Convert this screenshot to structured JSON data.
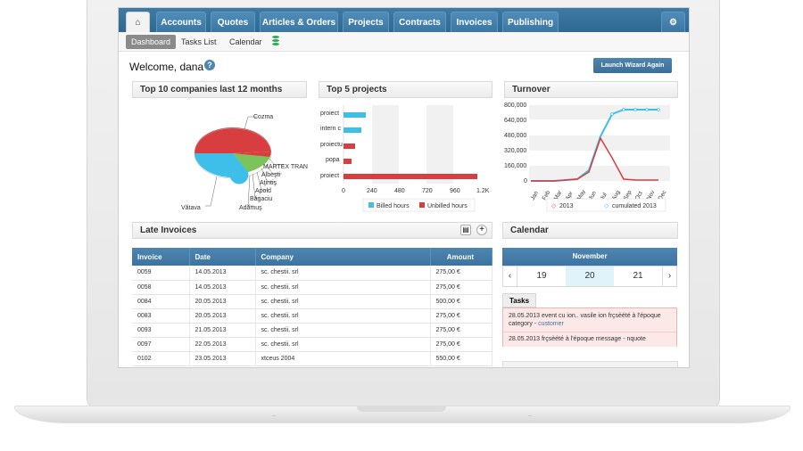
{
  "nav": {
    "tabs": [
      "Accounts",
      "Quotes",
      "Articles & Orders",
      "Projects",
      "Contracts",
      "Invoices",
      "Publishing"
    ]
  },
  "subnav": {
    "items": [
      "Dashboard",
      "Tasks List",
      "Calendar"
    ]
  },
  "welcome": "Welcome, dana",
  "wizard": "Launch Wizard Again",
  "panels": {
    "companies": "Top 10 companies last 12 months",
    "projects": "Top 5 projects",
    "turnover": "Turnover",
    "late": "Late Invoices",
    "calendar": "Calendar"
  },
  "pie_labels": [
    "Cozma",
    "MARTEX TRAN",
    "Albeşti",
    "Aţintiş",
    "Apold",
    "Băgaciu",
    "Adămuş",
    "Vătava"
  ],
  "project_chart": {
    "categories": [
      "proiect",
      "intern c",
      "proiectu",
      "popa",
      "proiect"
    ],
    "ticks": [
      "0",
      "240",
      "480",
      "720",
      "960",
      "1.2K"
    ],
    "legend": [
      "Billed hours",
      "Unbilled hours"
    ]
  },
  "turnover_chart": {
    "ticks": [
      "800,000",
      "640,000",
      "480,000",
      "320,000",
      "160,000",
      "0"
    ],
    "months": [
      "Jan",
      "Feb",
      "Mar",
      "Apr",
      "May",
      "Jun",
      "Jul",
      "Aug",
      "Sep",
      "Oct",
      "Nov",
      "Dec"
    ],
    "legend": [
      "2013",
      "cumulated 2013"
    ]
  },
  "invoices": {
    "headers": [
      "Invoice",
      "Date",
      "Company",
      "Amount"
    ],
    "rows": [
      [
        "0059",
        "14.05.2013",
        "sc. chestii. srl",
        "275,00 €"
      ],
      [
        "0058",
        "14.05.2013",
        "sc. chestii. srl",
        "275,00 €"
      ],
      [
        "0084",
        "20.05.2013",
        "sc. chestii. srl",
        "500,00 €"
      ],
      [
        "0083",
        "20.05.2013",
        "sc. chestii. srl",
        "275,00 €"
      ],
      [
        "0093",
        "21.05.2013",
        "sc. chestii. srl",
        "275,00 €"
      ],
      [
        "0097",
        "22.05.2013",
        "sc. chestii. srl",
        "275,00 €"
      ],
      [
        "0102",
        "23.05.2013",
        "xtceus 2004",
        "550,00 €"
      ]
    ]
  },
  "calendar": {
    "month": "November",
    "days": [
      "19",
      "20",
      "21"
    ]
  },
  "tasks": {
    "label": "Tasks",
    "line1": "28.05.2013 event cu ion.. vasile ion frçsèété à l'époque",
    "line1b": "category - ",
    "line1c": "customer",
    "line2": "28.05.2013 frçsèété à l'époque message - nquote"
  }
}
